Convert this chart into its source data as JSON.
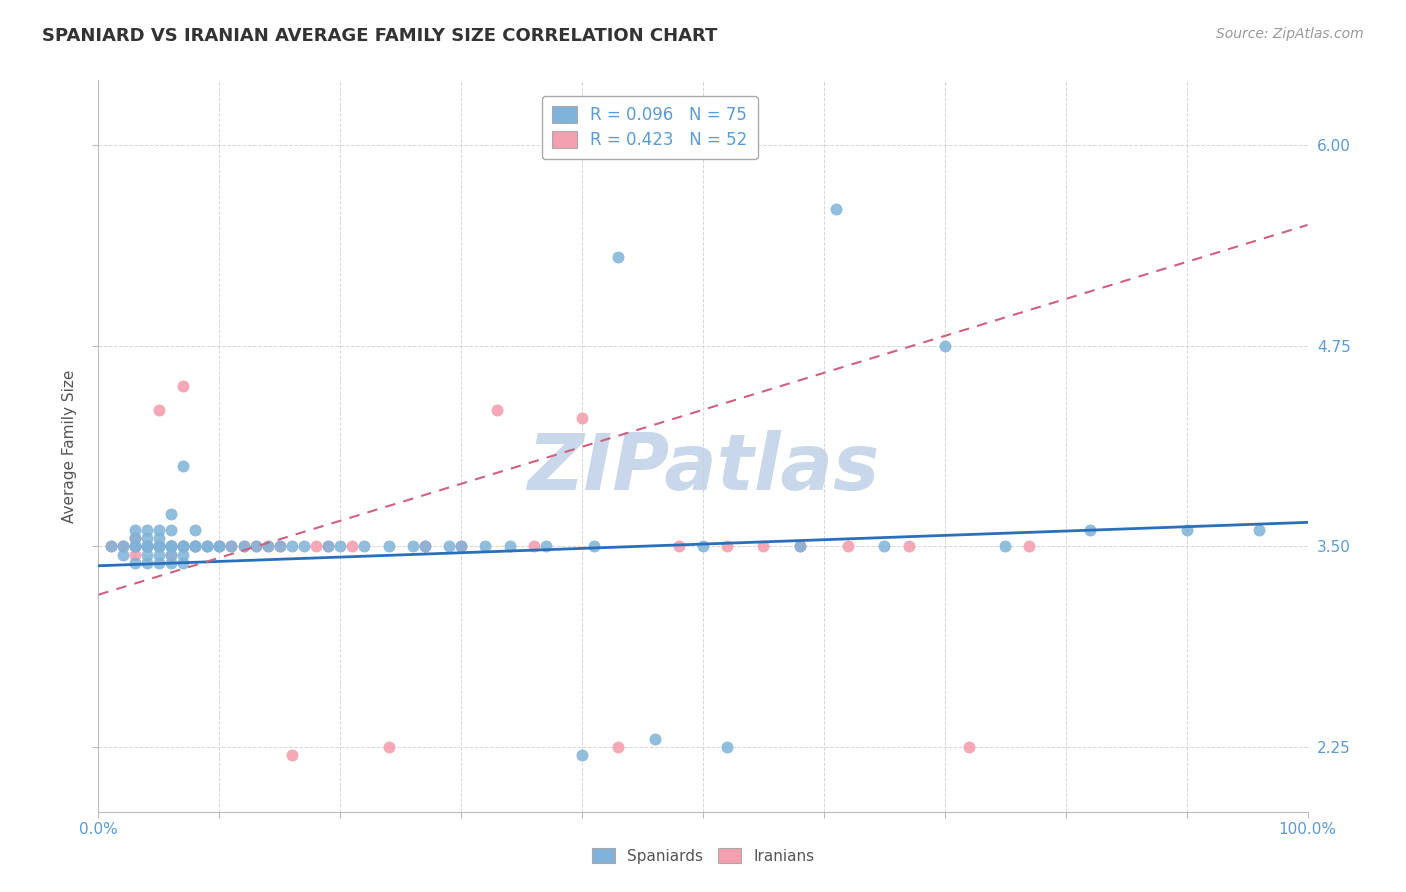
{
  "title": "SPANIARD VS IRANIAN AVERAGE FAMILY SIZE CORRELATION CHART",
  "source_text": "Source: ZipAtlas.com",
  "ylabel": "Average Family Size",
  "xlim": [
    0,
    1
  ],
  "ylim": [
    1.85,
    6.4
  ],
  "yticks": [
    2.25,
    3.5,
    4.75,
    6.0
  ],
  "title_fontsize": 13,
  "axis_label_fontsize": 11,
  "tick_fontsize": 11,
  "source_fontsize": 10,
  "legend_r_blue": "R = 0.096",
  "legend_n_blue": "N = 75",
  "legend_r_pink": "R = 0.423",
  "legend_n_pink": "N = 52",
  "spaniard_color": "#7fb3d9",
  "iranian_color": "#f4a0b0",
  "trendline_blue_color": "#2a6fba",
  "trendline_pink_color": "#d06080",
  "watermark_text": "ZIPatlas",
  "watermark_color": "#c8d8ea",
  "background_color": "#ffffff",
  "grid_color": "#cccccc",
  "spaniard_points_x": [
    0.01,
    0.02,
    0.02,
    0.03,
    0.03,
    0.03,
    0.03,
    0.03,
    0.04,
    0.04,
    0.04,
    0.04,
    0.04,
    0.04,
    0.04,
    0.05,
    0.05,
    0.05,
    0.05,
    0.05,
    0.05,
    0.05,
    0.05,
    0.06,
    0.06,
    0.06,
    0.06,
    0.06,
    0.06,
    0.06,
    0.06,
    0.07,
    0.07,
    0.07,
    0.07,
    0.07,
    0.08,
    0.08,
    0.08,
    0.09,
    0.09,
    0.1,
    0.1,
    0.11,
    0.12,
    0.13,
    0.14,
    0.15,
    0.16,
    0.17,
    0.19,
    0.2,
    0.22,
    0.24,
    0.26,
    0.27,
    0.29,
    0.3,
    0.32,
    0.34,
    0.37,
    0.4,
    0.41,
    0.43,
    0.46,
    0.5,
    0.52,
    0.58,
    0.61,
    0.65,
    0.7,
    0.75,
    0.82,
    0.9,
    0.96
  ],
  "spaniard_points_y": [
    3.5,
    3.5,
    3.45,
    3.5,
    3.5,
    3.6,
    3.4,
    3.55,
    3.5,
    3.5,
    3.5,
    3.4,
    3.45,
    3.55,
    3.6,
    3.5,
    3.5,
    3.5,
    3.5,
    3.45,
    3.4,
    3.6,
    3.55,
    3.5,
    3.5,
    3.5,
    3.4,
    3.5,
    3.45,
    3.6,
    3.7,
    3.5,
    3.5,
    3.45,
    3.4,
    4.0,
    3.5,
    3.5,
    3.6,
    3.5,
    3.5,
    3.5,
    3.5,
    3.5,
    3.5,
    3.5,
    3.5,
    3.5,
    3.5,
    3.5,
    3.5,
    3.5,
    3.5,
    3.5,
    3.5,
    3.5,
    3.5,
    3.5,
    3.5,
    3.5,
    3.5,
    2.2,
    3.5,
    5.3,
    2.3,
    3.5,
    2.25,
    3.5,
    5.6,
    3.5,
    4.75,
    3.5,
    3.6,
    3.6,
    3.6
  ],
  "iranian_points_x": [
    0.01,
    0.02,
    0.02,
    0.03,
    0.03,
    0.03,
    0.04,
    0.04,
    0.04,
    0.04,
    0.04,
    0.05,
    0.05,
    0.05,
    0.05,
    0.05,
    0.06,
    0.06,
    0.06,
    0.06,
    0.06,
    0.07,
    0.07,
    0.07,
    0.08,
    0.08,
    0.09,
    0.1,
    0.11,
    0.12,
    0.13,
    0.14,
    0.15,
    0.16,
    0.18,
    0.19,
    0.21,
    0.24,
    0.27,
    0.3,
    0.33,
    0.36,
    0.4,
    0.43,
    0.48,
    0.52,
    0.55,
    0.58,
    0.62,
    0.67,
    0.72,
    0.77
  ],
  "iranian_points_y": [
    3.5,
    3.5,
    3.5,
    3.45,
    3.5,
    3.55,
    3.5,
    3.5,
    3.5,
    3.5,
    3.5,
    3.5,
    3.5,
    3.5,
    4.35,
    3.5,
    3.45,
    3.5,
    3.5,
    3.5,
    3.5,
    4.5,
    3.5,
    3.5,
    3.5,
    3.5,
    3.5,
    3.5,
    3.5,
    3.5,
    3.5,
    3.5,
    3.5,
    2.2,
    3.5,
    3.5,
    3.5,
    2.25,
    3.5,
    3.5,
    4.35,
    3.5,
    4.3,
    2.25,
    3.5,
    3.5,
    3.5,
    3.5,
    3.5,
    3.5,
    2.25,
    3.5
  ],
  "blue_trend_x0": 0.0,
  "blue_trend_y0": 3.38,
  "blue_trend_x1": 1.0,
  "blue_trend_y1": 3.65,
  "pink_trend_x0": 0.0,
  "pink_trend_y0": 3.2,
  "pink_trend_x1": 1.0,
  "pink_trend_y1": 5.5
}
